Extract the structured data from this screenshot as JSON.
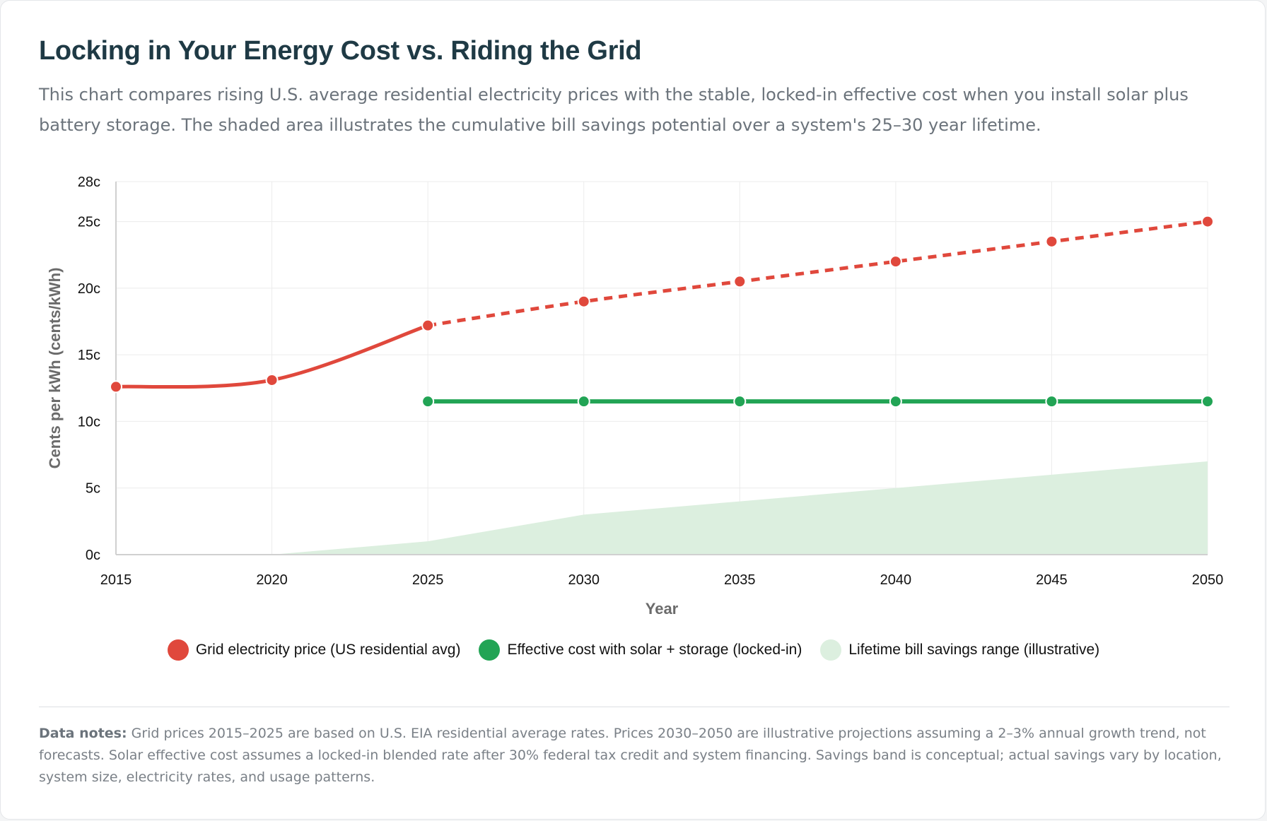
{
  "header": {
    "title": "Locking in Your Energy Cost vs. Riding the Grid",
    "subtitle": "This chart compares rising U.S. average residential electricity prices with the stable, locked-in effective cost when you install solar plus battery storage. The shaded area illustrates the cumulative bill savings potential over a system's 25–30 year lifetime."
  },
  "chart_data": {
    "type": "line",
    "xlabel": "Year",
    "ylabel": "Cents per kWh (cents/kWh)",
    "x": [
      2015,
      2020,
      2025,
      2030,
      2035,
      2040,
      2045,
      2050
    ],
    "xlim": [
      2015,
      2050
    ],
    "ylim": [
      0,
      28
    ],
    "y_ticks": [
      0,
      5,
      10,
      15,
      20,
      25,
      28
    ],
    "y_tick_labels": [
      "0c",
      "5c",
      "10c",
      "15c",
      "20c",
      "25c",
      "28c"
    ],
    "grid": true,
    "legend_position": "bottom",
    "series": [
      {
        "name": "Grid electricity price (US residential avg)",
        "color": "#e0483c",
        "style": "solid through 2025, dashed after",
        "x": [
          2015,
          2020,
          2025,
          2030,
          2035,
          2040,
          2045,
          2050
        ],
        "values": [
          12.6,
          13.1,
          17.2,
          19.0,
          20.5,
          22.0,
          23.5,
          25.0
        ]
      },
      {
        "name": "Effective cost with solar + storage (locked-in)",
        "color": "#22a455",
        "style": "solid",
        "x": [
          2025,
          2030,
          2035,
          2040,
          2045,
          2050
        ],
        "values": [
          11.5,
          11.5,
          11.5,
          11.5,
          11.5,
          11.5
        ]
      },
      {
        "name": "Lifetime bill savings range (illustrative)",
        "color": "#dcefdf",
        "style": "area",
        "x": [
          2020,
          2025,
          2030,
          2035,
          2040,
          2045,
          2050
        ],
        "values": [
          0,
          1,
          3,
          4,
          5,
          6,
          7
        ]
      }
    ]
  },
  "notes": {
    "label": "Data notes:",
    "text": " Grid prices 2015–2025 are based on U.S. EIA residential average rates. Prices 2030–2050 are illustrative projections assuming a 2–3% annual growth trend, not forecasts. Solar effective cost assumes a locked-in blended rate after 30% federal tax credit and system financing. Savings band is conceptual; actual savings vary by location, system size, electricity rates, and usage patterns."
  }
}
